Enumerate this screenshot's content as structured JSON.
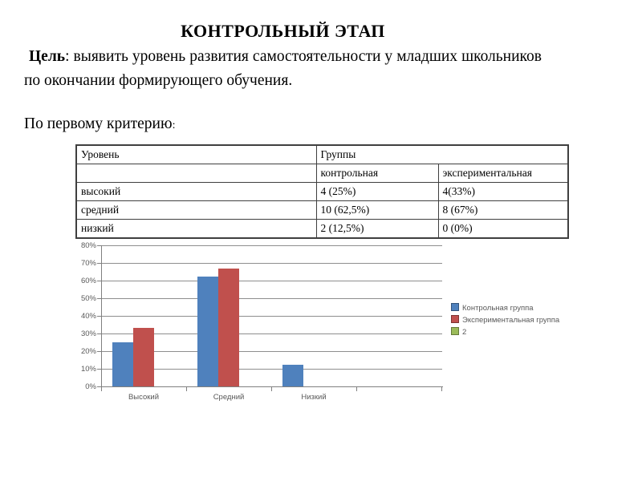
{
  "slide": {
    "title": "КОНТРОЛЬНЫЙ ЭТАП",
    "intro_label": "Цель",
    "intro_text": ": выявить уровень развития самостоятельности у младших школьников по окончании формирующего обучения.",
    "criterion_text": "По первому критерию",
    "criterion_colon": ":"
  },
  "table": {
    "level_header": "Уровень",
    "groups_header": "Группы",
    "subheaders": [
      "контрольная",
      "экспериментальная"
    ],
    "rows": [
      {
        "level": "высокий",
        "control": "4 (25%)",
        "experimental": "4(33%)"
      },
      {
        "level": "средний",
        "control": "10 (62,5%)",
        "experimental": "8 (67%)"
      },
      {
        "level": "низкий",
        "control": "2 (12,5%)",
        "experimental": "0 (0%)"
      }
    ]
  },
  "chart_data": {
    "type": "bar",
    "title": "",
    "xlabel": "",
    "ylabel": "",
    "categories": [
      "Высокий",
      "Средний",
      "Низкий",
      ""
    ],
    "series": [
      {
        "name": "Контрольная группа",
        "color": "#4f81bd",
        "values": [
          25,
          62.5,
          12.5,
          0
        ]
      },
      {
        "name": "Экспериментальная группа",
        "color": "#c0504d",
        "values": [
          33,
          67,
          0,
          0
        ]
      },
      {
        "name": "2",
        "color": "#9bbb59",
        "values": [
          0,
          0,
          0,
          0
        ]
      }
    ],
    "ylim": [
      0,
      80
    ],
    "y_ticks": [
      "0%",
      "10%",
      "20%",
      "30%",
      "40%",
      "50%",
      "60%",
      "70%",
      "80%"
    ],
    "grid": true,
    "legend_position": "right",
    "grid_color": "#8e8e8e",
    "axis_color": "#808080",
    "text_color": "#595959"
  }
}
